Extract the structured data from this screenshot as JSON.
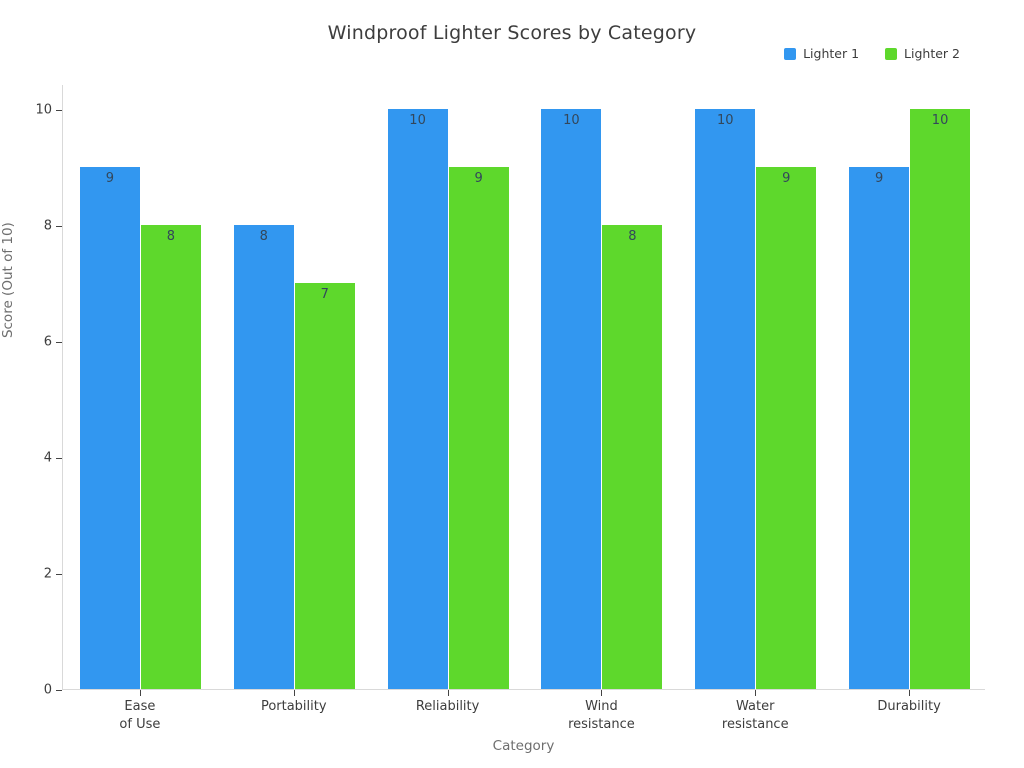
{
  "title": "Windproof Lighter Scores by Category",
  "legend": {
    "items": [
      {
        "label": "Lighter 1",
        "color": "#3297f0"
      },
      {
        "label": "Lighter 2",
        "color": "#5ed82c"
      }
    ]
  },
  "axes": {
    "x_title": "Category",
    "y_title": "Score (Out of 10)"
  },
  "chart_data": {
    "type": "bar",
    "title": "Windproof Lighter Scores by Category",
    "xlabel": "Category",
    "ylabel": "Score (Out of 10)",
    "categories": [
      "Ease\nof Use",
      "Portability",
      "Reliability",
      "Wind\nresistance",
      "Water\nresistance",
      "Durability"
    ],
    "series": [
      {
        "name": "Lighter 1",
        "color": "#3297f0",
        "values": [
          9,
          8,
          10,
          10,
          10,
          9
        ]
      },
      {
        "name": "Lighter 2",
        "color": "#5ed82c",
        "values": [
          8,
          7,
          9,
          8,
          9,
          10
        ]
      }
    ],
    "ylim": [
      0,
      10
    ],
    "yticks": [
      0,
      2,
      4,
      6,
      8,
      10
    ],
    "grid": false,
    "legend_position": "top-right",
    "bar_labels": "inside-top",
    "bar_label_color": "#33475b"
  },
  "colors": {
    "bar_blue": "#3297f0",
    "bar_green": "#5ed82c",
    "axis_line": "#d9d9d9",
    "tick_text": "#3d3d3d",
    "axis_title_text": "#6e6e6e"
  }
}
